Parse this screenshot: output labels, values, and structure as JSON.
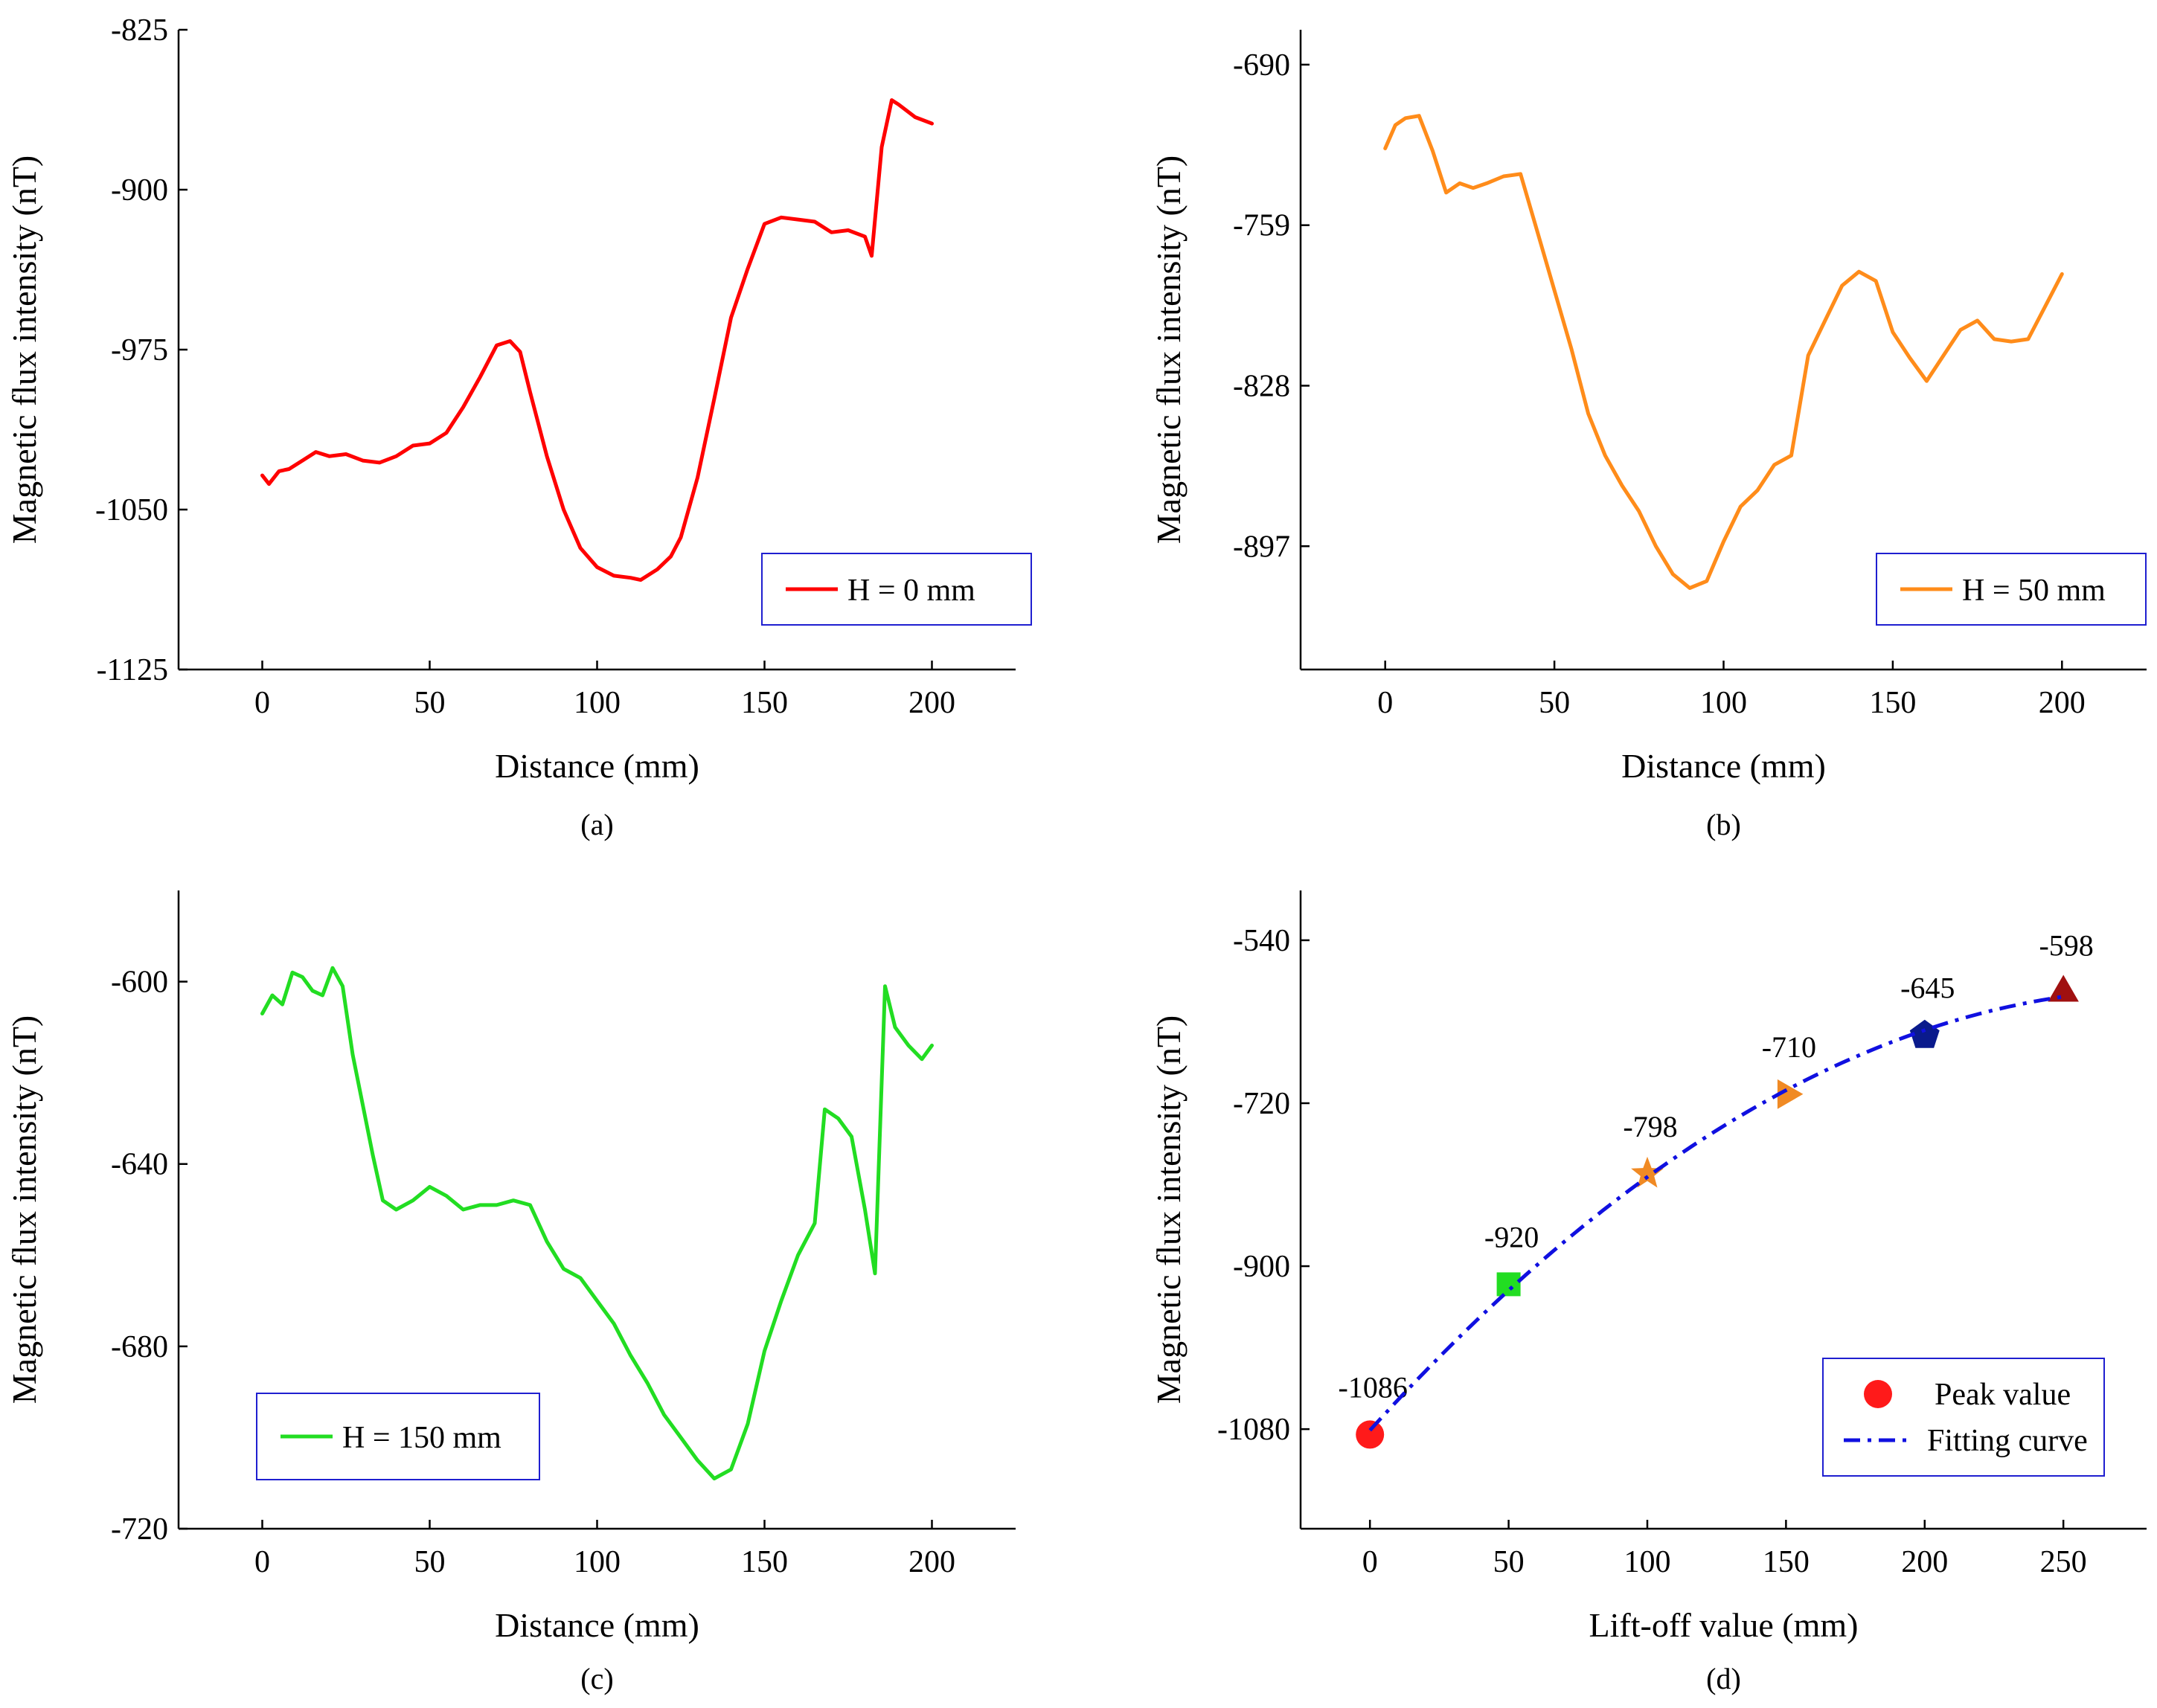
{
  "chart_data": [
    {
      "id": "a",
      "type": "line",
      "caption": "(a)",
      "xlabel": "Distance (mm)",
      "ylabel": "Magnetic flux intensity (nT)",
      "xlim": [
        -25,
        225
      ],
      "ylim": [
        -1125,
        -825
      ],
      "xticks": [
        0,
        50,
        100,
        150,
        200
      ],
      "yticks": [
        -825,
        -900,
        -975,
        -1050,
        -1125
      ],
      "grid": false,
      "legend_position": "bottom-right",
      "series": [
        {
          "name": "H = 0 mm",
          "color": "#ff0000",
          "x": [
            0,
            2,
            5,
            8,
            12,
            16,
            20,
            25,
            30,
            35,
            40,
            45,
            50,
            55,
            60,
            65,
            70,
            74,
            77,
            80,
            85,
            90,
            95,
            100,
            105,
            110,
            113,
            118,
            122,
            125,
            130,
            135,
            140,
            145,
            150,
            155,
            160,
            165,
            170,
            175,
            180,
            182,
            185,
            188,
            190,
            195,
            200
          ],
          "y": [
            -1034,
            -1038,
            -1032,
            -1031,
            -1027,
            -1023,
            -1025,
            -1024,
            -1027,
            -1028,
            -1025,
            -1020,
            -1019,
            -1014,
            -1002,
            -988,
            -973,
            -971,
            -976,
            -995,
            -1025,
            -1050,
            -1068,
            -1077,
            -1081,
            -1082,
            -1083,
            -1078,
            -1072,
            -1063,
            -1035,
            -998,
            -960,
            -937,
            -916,
            -913,
            -914,
            -915,
            -920,
            -919,
            -922,
            -931,
            -880,
            -858,
            -860,
            -866,
            -869
          ]
        }
      ]
    },
    {
      "id": "b",
      "type": "line",
      "caption": "(b)",
      "xlabel": "Distance (mm)",
      "ylabel": "Magnetic flux intensity (nT)",
      "xlim": [
        -25,
        225
      ],
      "ylim": [
        -950,
        -675
      ],
      "xticks": [
        0,
        50,
        100,
        150,
        200
      ],
      "yticks": [
        -690,
        -759,
        -828,
        -897
      ],
      "grid": false,
      "legend_position": "bottom-right",
      "series": [
        {
          "name": "H = 50 mm",
          "color": "#ff8c1a",
          "x": [
            0,
            3,
            6,
            10,
            14,
            18,
            22,
            26,
            30,
            35,
            40,
            45,
            50,
            55,
            60,
            65,
            70,
            75,
            80,
            85,
            90,
            95,
            100,
            105,
            110,
            115,
            120,
            125,
            130,
            135,
            140,
            145,
            150,
            155,
            160,
            165,
            170,
            175,
            180,
            185,
            190,
            195,
            200
          ],
          "y": [
            -726,
            -716,
            -713,
            -712,
            -727,
            -745,
            -741,
            -743,
            -741,
            -738,
            -737,
            -762,
            -787,
            -812,
            -840,
            -858,
            -871,
            -882,
            -897,
            -909,
            -915,
            -912,
            -895,
            -880,
            -873,
            -862,
            -858,
            -815,
            -800,
            -785,
            -779,
            -783,
            -805,
            -816,
            -826,
            -815,
            -804,
            -800,
            -808,
            -809,
            -808,
            -794,
            -780
          ]
        }
      ]
    },
    {
      "id": "c",
      "type": "line",
      "caption": "(c)",
      "xlabel": "Distance (mm)",
      "ylabel": "Magnetic flux intensity (nT)",
      "xlim": [
        -25,
        225
      ],
      "ylim": [
        -720,
        -580
      ],
      "xticks": [
        0,
        50,
        100,
        150,
        200
      ],
      "yticks": [
        -600,
        -640,
        -680,
        -720
      ],
      "grid": false,
      "legend_position": "bottom-left",
      "series": [
        {
          "name": "H = 150 mm",
          "color": "#22dd22",
          "x": [
            0,
            3,
            6,
            9,
            12,
            15,
            18,
            21,
            24,
            27,
            30,
            33,
            36,
            40,
            45,
            50,
            55,
            60,
            65,
            70,
            75,
            80,
            85,
            90,
            95,
            100,
            105,
            110,
            115,
            120,
            125,
            130,
            135,
            140,
            145,
            150,
            155,
            160,
            165,
            168,
            172,
            176,
            180,
            183,
            186,
            189,
            193,
            197,
            200
          ],
          "y": [
            -607,
            -603,
            -605,
            -598,
            -599,
            -602,
            -603,
            -597,
            -601,
            -616,
            -627,
            -638,
            -648,
            -650,
            -648,
            -645,
            -647,
            -650,
            -649,
            -649,
            -648,
            -649,
            -657,
            -663,
            -665,
            -670,
            -675,
            -682,
            -688,
            -695,
            -700,
            -705,
            -709,
            -707,
            -697,
            -681,
            -670,
            -660,
            -653,
            -628,
            -630,
            -634,
            -650,
            -664,
            -601,
            -610,
            -614,
            -617,
            -614
          ]
        }
      ]
    },
    {
      "id": "d",
      "type": "scatter",
      "caption": "(d)",
      "xlabel": "Lift-off value (mm)",
      "ylabel": "Magnetic flux intensity (nT)",
      "xlim": [
        -25,
        280
      ],
      "ylim": [
        -1190,
        -485
      ],
      "xticks": [
        0,
        50,
        100,
        150,
        200,
        250
      ],
      "yticks": [
        -540,
        -720,
        -900,
        -1080
      ],
      "grid": false,
      "legend_position": "bottom-right",
      "legend": [
        "Peak value",
        "Fitting curve"
      ],
      "points": [
        {
          "x": 0,
          "y": -1086,
          "label": "-1086",
          "marker": "circle",
          "color": "#ff1a1a"
        },
        {
          "x": 50,
          "y": -920,
          "label": "-920",
          "marker": "square",
          "color": "#22dd22"
        },
        {
          "x": 100,
          "y": -798,
          "label": "-798",
          "marker": "star",
          "color": "#f08a24"
        },
        {
          "x": 150,
          "y": -710,
          "label": "-710",
          "marker": "triangle-right",
          "color": "#f08a24"
        },
        {
          "x": 200,
          "y": -645,
          "label": "-645",
          "marker": "pentagon",
          "color": "#0a1a8c"
        },
        {
          "x": 250,
          "y": -598,
          "label": "-598",
          "marker": "triangle-up",
          "color": "#a01010"
        }
      ],
      "fit_color": "#1010e0"
    }
  ]
}
